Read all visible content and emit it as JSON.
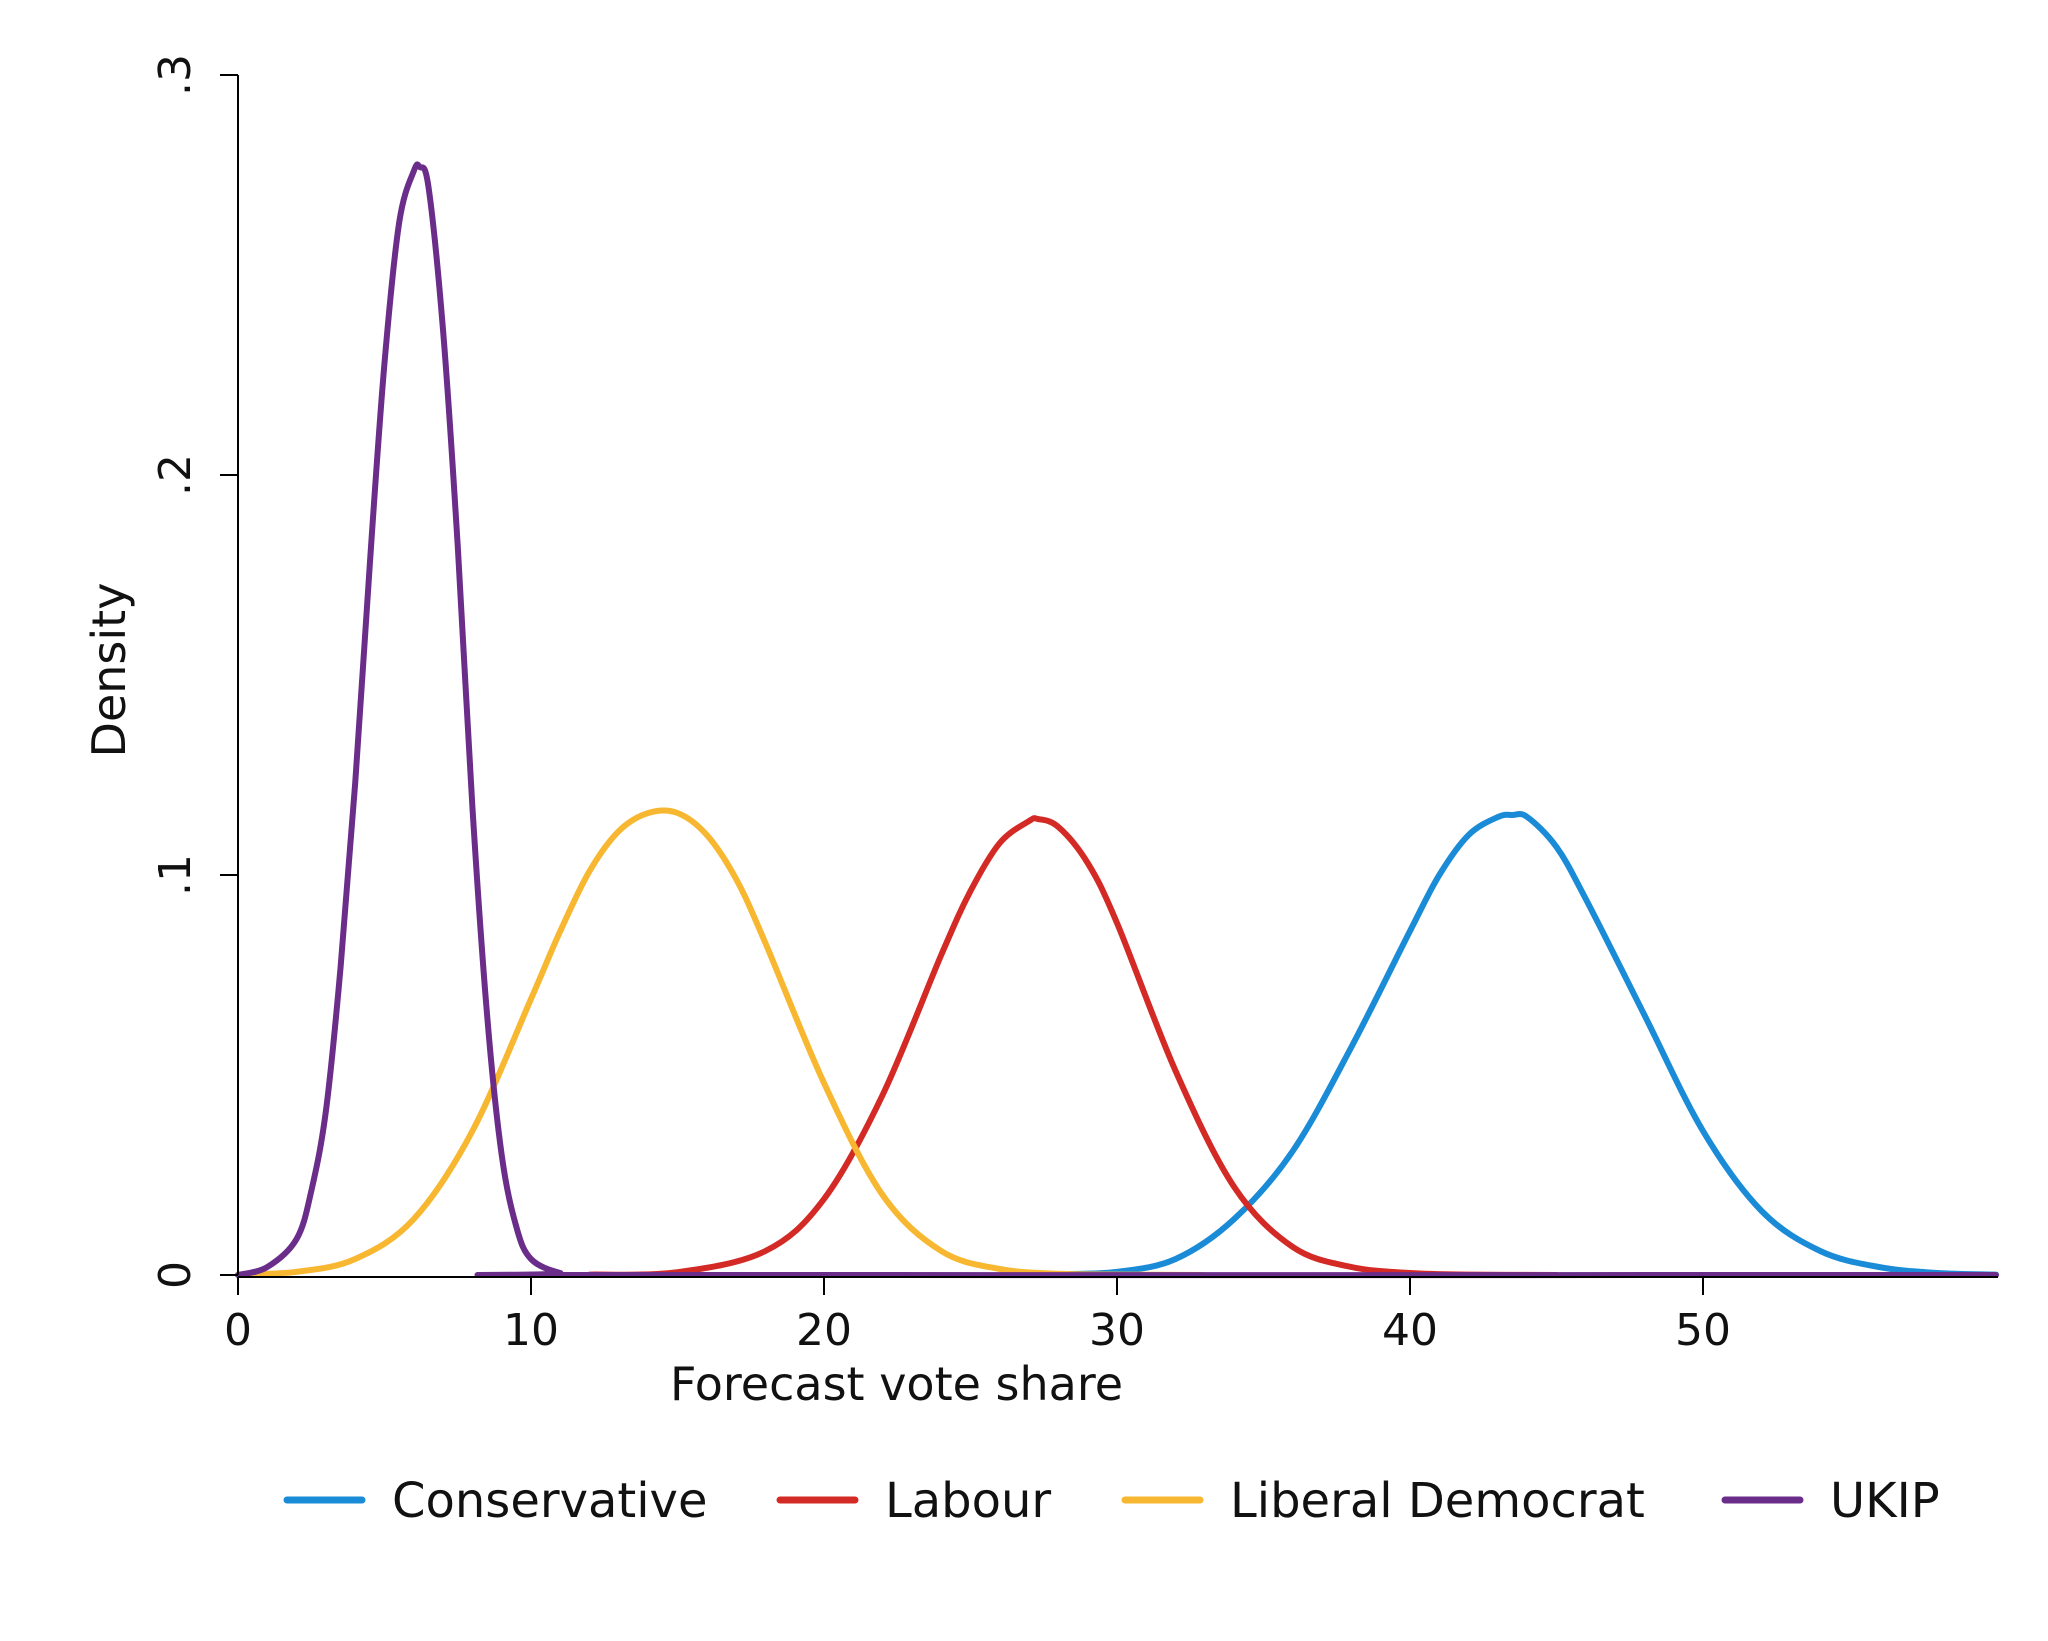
{
  "chart_data": {
    "type": "line",
    "title": "",
    "xlabel": "Forecast vote share",
    "ylabel": "Density",
    "xlim": [
      0,
      60
    ],
    "ylim": [
      0,
      0.3
    ],
    "x_ticks": [
      {
        "value": 0,
        "label": "0"
      },
      {
        "value": 10,
        "label": "10"
      },
      {
        "value": 20,
        "label": "20"
      },
      {
        "value": 30,
        "label": "30"
      },
      {
        "value": 40,
        "label": "40"
      },
      {
        "value": 50,
        "label": "50"
      }
    ],
    "y_ticks": [
      {
        "value": 0,
        "label": "0"
      },
      {
        "value": 0.1,
        "label": ".1"
      },
      {
        "value": 0.2,
        "label": ".2"
      },
      {
        "value": 0.3,
        "label": ".3"
      }
    ],
    "grid": false,
    "legend_position": "bottom",
    "series": [
      {
        "name": "Conservative",
        "color": "#1a8bd6",
        "x": [
          28,
          30,
          32,
          34,
          36,
          38,
          40,
          41,
          42,
          43,
          43.5,
          44,
          45,
          46,
          48,
          50,
          52,
          54,
          56,
          58,
          60
        ],
        "y": [
          0.0002,
          0.0008,
          0.004,
          0.014,
          0.031,
          0.057,
          0.086,
          0.1,
          0.11,
          0.1145,
          0.115,
          0.1145,
          0.107,
          0.094,
          0.065,
          0.036,
          0.016,
          0.006,
          0.002,
          0.0005,
          0.0001
        ]
      },
      {
        "name": "Labour",
        "color": "#d42a26",
        "x": [
          12,
          15,
          18,
          20,
          22,
          24,
          25,
          26,
          27,
          27.3,
          28,
          29,
          30,
          32,
          34,
          36,
          38,
          40,
          42,
          45
        ],
        "y": [
          0.0001,
          0.0007,
          0.006,
          0.019,
          0.045,
          0.08,
          0.096,
          0.108,
          0.1135,
          0.114,
          0.112,
          0.103,
          0.088,
          0.051,
          0.022,
          0.007,
          0.002,
          0.0005,
          0.0001,
          0.0
        ]
      },
      {
        "name": "Liberal Democrat",
        "color": "#f7b731",
        "x": [
          0,
          2,
          4,
          6,
          8,
          10,
          11,
          12,
          13,
          14,
          15,
          16,
          17,
          18,
          20,
          22,
          24,
          26,
          28,
          30,
          33
        ],
        "y": [
          0.0001,
          0.0008,
          0.004,
          0.014,
          0.036,
          0.069,
          0.086,
          0.101,
          0.111,
          0.1155,
          0.1155,
          0.11,
          0.099,
          0.083,
          0.048,
          0.02,
          0.006,
          0.0015,
          0.0003,
          0.0001,
          0.0
        ]
      },
      {
        "name": "UKIP",
        "color": "#6b2d8a",
        "x": [
          0,
          1,
          2,
          2.5,
          3,
          3.5,
          4,
          4.5,
          5,
          5.5,
          6,
          6.2,
          6.5,
          7,
          7.5,
          8,
          8.5,
          9,
          9.5,
          10,
          11,
          12,
          60
        ],
        "y": [
          0.0,
          0.002,
          0.009,
          0.021,
          0.041,
          0.077,
          0.123,
          0.178,
          0.228,
          0.263,
          0.276,
          0.277,
          0.272,
          0.236,
          0.182,
          0.117,
          0.065,
          0.03,
          0.012,
          0.004,
          0.0005,
          0.0,
          0.0
        ]
      }
    ]
  }
}
